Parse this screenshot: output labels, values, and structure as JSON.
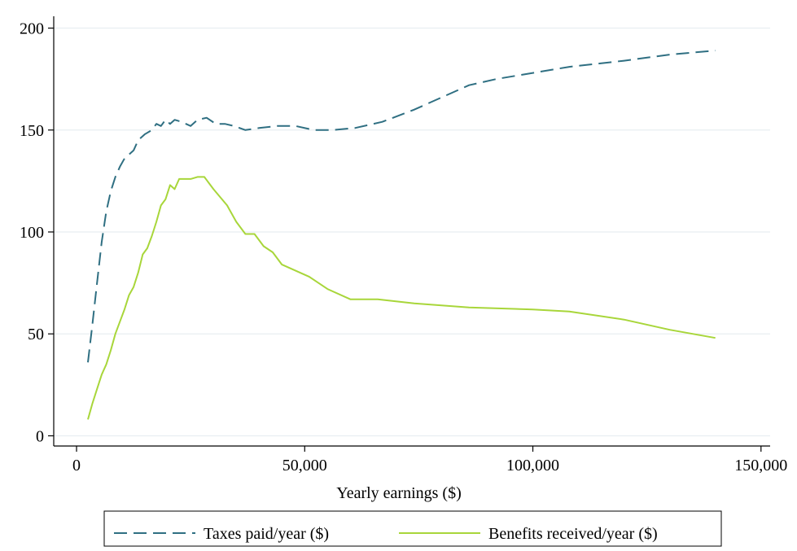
{
  "colors": {
    "taxes": "#2f6f82",
    "benefits": "#a8d63a",
    "grid": "#e8eef1",
    "axis": "#000000"
  },
  "chart_data": {
    "type": "line",
    "title": "",
    "xlabel": "Yearly earnings ($)",
    "ylabel": "",
    "xlim": [
      -5000,
      152000
    ],
    "ylim": [
      -5,
      205
    ],
    "xticks": [
      0,
      50000,
      100000,
      150000
    ],
    "xtick_labels": [
      "0",
      "50,000",
      "100,000",
      "150,000"
    ],
    "yticks": [
      0,
      50,
      100,
      150,
      200
    ],
    "ytick_labels": [
      "0",
      "50",
      "100",
      "150",
      "200"
    ],
    "grid": "horizontal",
    "legend_position": "bottom",
    "series": [
      {
        "name": "Taxes paid/year ($)",
        "style": "dashed",
        "color": "#2f6f82",
        "points": [
          [
            2500,
            36
          ],
          [
            3500,
            55
          ],
          [
            4500,
            75
          ],
          [
            5500,
            95
          ],
          [
            6500,
            110
          ],
          [
            7500,
            120
          ],
          [
            8500,
            127
          ],
          [
            9500,
            132
          ],
          [
            10500,
            136
          ],
          [
            11500,
            138
          ],
          [
            12500,
            140
          ],
          [
            13500,
            145
          ],
          [
            15000,
            148
          ],
          [
            16500,
            150
          ],
          [
            17500,
            153
          ],
          [
            18500,
            152
          ],
          [
            19500,
            155
          ],
          [
            20500,
            153
          ],
          [
            21500,
            155
          ],
          [
            23000,
            154
          ],
          [
            25000,
            152
          ],
          [
            26500,
            155
          ],
          [
            28500,
            156
          ],
          [
            30500,
            153
          ],
          [
            32500,
            153
          ],
          [
            34500,
            152
          ],
          [
            37000,
            150
          ],
          [
            40000,
            151
          ],
          [
            44000,
            152
          ],
          [
            48000,
            152
          ],
          [
            52000,
            150
          ],
          [
            56000,
            150
          ],
          [
            61000,
            151
          ],
          [
            67000,
            154
          ],
          [
            74000,
            160
          ],
          [
            80000,
            166
          ],
          [
            86000,
            172
          ],
          [
            92000,
            175
          ],
          [
            100000,
            178
          ],
          [
            108000,
            181
          ],
          [
            120000,
            184
          ],
          [
            130000,
            187
          ],
          [
            140000,
            189
          ]
        ]
      },
      {
        "name": "Benefits received/year ($)",
        "style": "solid",
        "color": "#a8d63a",
        "points": [
          [
            2500,
            8
          ],
          [
            3500,
            16
          ],
          [
            4500,
            23
          ],
          [
            5500,
            30
          ],
          [
            6500,
            35
          ],
          [
            7500,
            42
          ],
          [
            8500,
            50
          ],
          [
            9500,
            56
          ],
          [
            10500,
            62
          ],
          [
            11500,
            69
          ],
          [
            12500,
            73
          ],
          [
            13500,
            80
          ],
          [
            14500,
            89
          ],
          [
            15500,
            92
          ],
          [
            16500,
            98
          ],
          [
            17500,
            105
          ],
          [
            18500,
            113
          ],
          [
            19500,
            116
          ],
          [
            20500,
            123
          ],
          [
            21500,
            121
          ],
          [
            22500,
            126
          ],
          [
            23500,
            126
          ],
          [
            25000,
            126
          ],
          [
            26500,
            127
          ],
          [
            28000,
            127
          ],
          [
            30000,
            121
          ],
          [
            31500,
            117
          ],
          [
            33000,
            113
          ],
          [
            35000,
            105
          ],
          [
            37000,
            99
          ],
          [
            39000,
            99
          ],
          [
            41000,
            93
          ],
          [
            43000,
            90
          ],
          [
            45000,
            84
          ],
          [
            48000,
            81
          ],
          [
            51000,
            78
          ],
          [
            55000,
            72
          ],
          [
            60000,
            67
          ],
          [
            66000,
            67
          ],
          [
            74000,
            65
          ],
          [
            86000,
            63
          ],
          [
            100000,
            62
          ],
          [
            108000,
            61
          ],
          [
            120000,
            57
          ],
          [
            130000,
            52
          ],
          [
            140000,
            48
          ]
        ]
      }
    ]
  }
}
